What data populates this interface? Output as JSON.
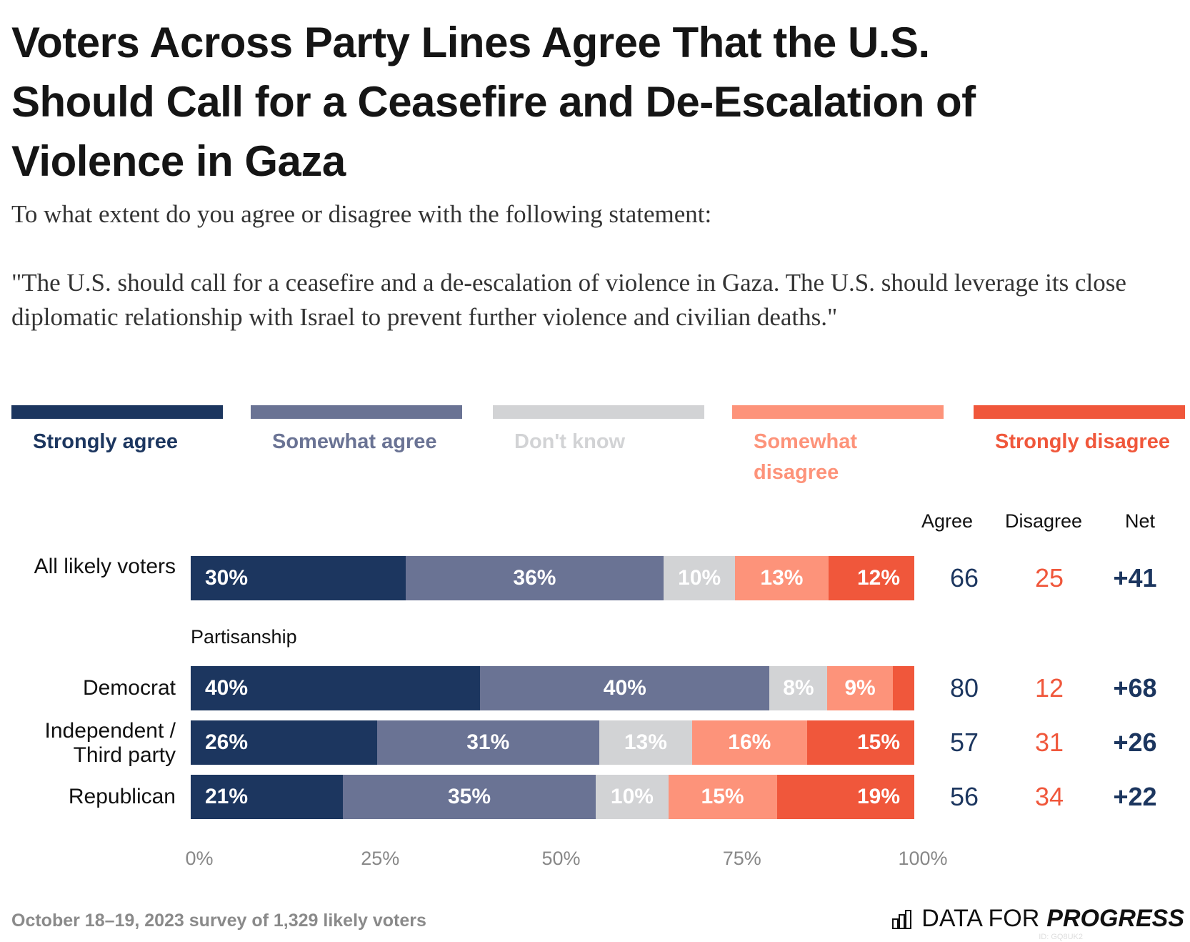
{
  "chart_data": {
    "type": "bar",
    "orientation": "horizontal-stacked",
    "title_lines": [
      "Voters Across Party Lines Agree That the U.S.",
      "Should Call for a Ceasefire and De-Escalation of",
      "Violence in Gaza"
    ],
    "subtitle": "To what extent do you agree or disagree with the following statement:",
    "quote": "\"The U.S. should call for a ceasefire and a de-escalation of violence in Gaza. The U.S. should leverage its close diplomatic relationship with Israel to prevent further violence and civilian deaths.\"",
    "legend": [
      {
        "name": "Strongly agree",
        "color": "#1c365f"
      },
      {
        "name": "Somewhat agree",
        "color": "#6a7394"
      },
      {
        "name": "Don't know",
        "color": "#d2d3d5"
      },
      {
        "name": "Somewhat disagree",
        "color": "#fd937a"
      },
      {
        "name": "Strongly disagree",
        "color": "#f0573b"
      }
    ],
    "group_label": "Partisanship",
    "columns": {
      "agree": "Agree",
      "disagree": "Disagree",
      "net": "Net",
      "agree_color": "#1c365f",
      "disagree_color": "#f0573b"
    },
    "rows": [
      {
        "label": "All likely voters",
        "values": [
          30,
          36,
          10,
          13,
          12
        ],
        "labels": [
          "30%",
          "36%",
          "10%",
          "13%",
          "12%"
        ],
        "agree": "66",
        "disagree": "25",
        "net": "+41"
      },
      {
        "label": "Democrat",
        "values": [
          40,
          40,
          8,
          9,
          3
        ],
        "labels": [
          "40%",
          "40%",
          "8%",
          "9%",
          ""
        ],
        "agree": "80",
        "disagree": "12",
        "net": "+68"
      },
      {
        "label": "Independent / Third party",
        "values": [
          26,
          31,
          13,
          16,
          15
        ],
        "labels": [
          "26%",
          "31%",
          "13%",
          "16%",
          "15%"
        ],
        "agree": "57",
        "disagree": "31",
        "net": "+26"
      },
      {
        "label": "Republican",
        "values": [
          21,
          35,
          10,
          15,
          19
        ],
        "labels": [
          "21%",
          "35%",
          "10%",
          "15%",
          "19%"
        ],
        "agree": "56",
        "disagree": "34",
        "net": "+22"
      }
    ],
    "x_ticks": [
      "0%",
      "25%",
      "50%",
      "75%",
      "100%"
    ],
    "xlim": [
      0,
      100
    ],
    "grid": false
  },
  "footer": {
    "source": "October 18–19, 2023 survey of 1,329 likely voters",
    "logo_light": "DATA FOR",
    "logo_bold": "PROGRESS",
    "id": "ID: GQ8UK2"
  }
}
